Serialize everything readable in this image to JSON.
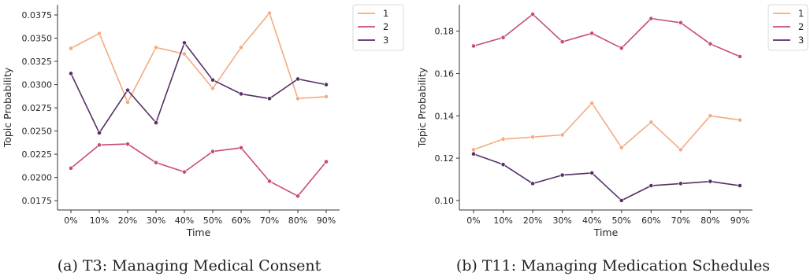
{
  "chart_data": [
    {
      "type": "line",
      "caption": "(a) T3: Managing Medical Consent",
      "xlabel": "Time",
      "ylabel": "Topic Probability",
      "categories": [
        "0%",
        "10%",
        "20%",
        "30%",
        "40%",
        "50%",
        "60%",
        "70%",
        "80%",
        "90%"
      ],
      "ylim": [
        0.0165,
        0.0386
      ],
      "yticks": [
        "0.0175",
        "0.0200",
        "0.0225",
        "0.0250",
        "0.0275",
        "0.0300",
        "0.0325",
        "0.0350",
        "0.0375"
      ],
      "legend_position": "top-right",
      "grid": false,
      "series": [
        {
          "name": "1",
          "color": "#f2ab80",
          "values": [
            0.0339,
            0.0355,
            0.0281,
            0.034,
            0.0333,
            0.0296,
            0.034,
            0.0377,
            0.0285,
            0.0287
          ]
        },
        {
          "name": "2",
          "color": "#c74b78",
          "values": [
            0.021,
            0.0235,
            0.0236,
            0.0216,
            0.0206,
            0.0228,
            0.0232,
            0.0196,
            0.018,
            0.0217
          ]
        },
        {
          "name": "3",
          "color": "#572f66",
          "values": [
            0.0312,
            0.0248,
            0.0294,
            0.0259,
            0.0345,
            0.0305,
            0.029,
            0.0285,
            0.0306,
            0.03
          ]
        }
      ]
    },
    {
      "type": "line",
      "caption": "(b) T11: Managing Medication Schedules",
      "xlabel": "Time",
      "ylabel": "Topic Probability",
      "categories": [
        "0%",
        "10%",
        "20%",
        "30%",
        "40%",
        "50%",
        "60%",
        "70%",
        "80%",
        "90%"
      ],
      "ylim": [
        0.0955,
        0.1925
      ],
      "yticks": [
        "0.10",
        "0.12",
        "0.14",
        "0.16",
        "0.18"
      ],
      "legend_position": "top-right",
      "grid": false,
      "series": [
        {
          "name": "1",
          "color": "#f2ab80",
          "values": [
            0.124,
            0.129,
            0.13,
            0.131,
            0.146,
            0.125,
            0.137,
            0.124,
            0.14,
            0.138
          ]
        },
        {
          "name": "2",
          "color": "#c74b78",
          "values": [
            0.173,
            0.177,
            0.188,
            0.175,
            0.179,
            0.172,
            0.186,
            0.184,
            0.174,
            0.168
          ]
        },
        {
          "name": "3",
          "color": "#572f66",
          "values": [
            0.122,
            0.117,
            0.108,
            0.112,
            0.113,
            0.1,
            0.107,
            0.108,
            0.109,
            0.107
          ]
        }
      ]
    }
  ]
}
